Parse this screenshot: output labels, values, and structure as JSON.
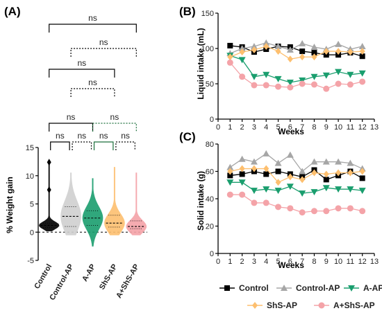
{
  "colors": {
    "Control": "#000000",
    "Control-AP": "#a6a6a6",
    "A-AP": "#1a9e6e",
    "ShS-AP": "#fdbf6f",
    "A+ShS-AP": "#f4a3a8",
    "bracket": "#000000"
  },
  "chart_data": [
    {
      "panel": "(A)",
      "type": "violin",
      "ylabel": "% Weight gain",
      "ylim": [
        -5,
        15
      ],
      "yticks": [
        -5,
        0,
        5,
        10,
        15
      ],
      "categories": [
        "Control",
        "Control-AP",
        "A-AP",
        "ShS-AP",
        "A+ShS-AP"
      ],
      "violins": [
        {
          "name": "Control",
          "color": "#000000",
          "min": 0.2,
          "max": 12.4,
          "median": 1.2,
          "q1": 0.8,
          "q3": 1.6,
          "outliers": [
            12.4,
            7.5
          ]
        },
        {
          "name": "Control-AP",
          "color": "#d0d0d0",
          "min": -0.5,
          "max": 10.5,
          "median": 2.8,
          "q1": 1.0,
          "q3": 4.5,
          "outliers": []
        },
        {
          "name": "A-AP",
          "color": "#1a9e6e",
          "min": -2.5,
          "max": 9.5,
          "median": 2.5,
          "q1": 1.2,
          "q3": 3.8,
          "outliers": []
        },
        {
          "name": "ShS-AP",
          "color": "#fdbf6f",
          "min": -0.5,
          "max": 11.5,
          "median": 1.6,
          "q1": 0.9,
          "q3": 3.0,
          "outliers": []
        },
        {
          "name": "A+ShS-AP",
          "color": "#f4a3a8",
          "min": -0.5,
          "max": 10.5,
          "median": 1.0,
          "q1": 0.6,
          "q3": 2.0,
          "outliers": []
        }
      ],
      "comparisons": [
        {
          "a": 0,
          "b": 4,
          "label": "ns"
        },
        {
          "a": 1,
          "b": 4,
          "label": "ns"
        },
        {
          "a": 0,
          "b": 3,
          "label": "ns"
        },
        {
          "a": 1,
          "b": 3,
          "label": "ns"
        },
        {
          "a": 0,
          "b": 2,
          "label": "ns"
        },
        {
          "a": 2,
          "b": 4,
          "label": "ns"
        },
        {
          "a": 0,
          "b": 1,
          "label": "ns"
        },
        {
          "a": 1,
          "b": 2,
          "label": "ns"
        },
        {
          "a": 2,
          "b": 3,
          "label": "ns"
        },
        {
          "a": 3,
          "b": 4,
          "label": "ns"
        }
      ]
    },
    {
      "panel": "(B)",
      "type": "line",
      "xlabel": "Weeks",
      "ylabel": "Liquid intake  (mL)",
      "xlim": [
        0,
        13
      ],
      "ylim": [
        0,
        150
      ],
      "xticks": [
        0,
        1,
        2,
        3,
        4,
        5,
        6,
        7,
        8,
        9,
        10,
        11,
        12,
        13
      ],
      "yticks": [
        0,
        50,
        100,
        150
      ],
      "x": [
        1,
        2,
        3,
        4,
        5,
        6,
        7,
        8,
        9,
        10,
        11,
        12
      ],
      "series": [
        {
          "name": "Control",
          "color": "#000000",
          "marker": "square",
          "values": [
            104,
            102,
            95,
            99,
            103,
            102,
            96,
            94,
            91,
            91,
            94,
            89
          ]
        },
        {
          "name": "Control-AP",
          "color": "#a6a6a6",
          "marker": "triangle-up",
          "values": [
            93,
            100,
            103,
            108,
            103,
            98,
            107,
            102,
            99,
            106,
            99,
            103
          ]
        },
        {
          "name": "A-AP",
          "color": "#1a9e6e",
          "marker": "triangle-down",
          "values": [
            90,
            84,
            60,
            63,
            57,
            52,
            55,
            60,
            62,
            67,
            63,
            65
          ]
        },
        {
          "name": "ShS-AP",
          "color": "#fdbf6f",
          "marker": "diamond",
          "values": [
            88,
            95,
            98,
            103,
            96,
            85,
            88,
            88,
            96,
            96,
            95,
            96
          ]
        },
        {
          "name": "A+ShS-AP",
          "color": "#f4a3a8",
          "marker": "circle",
          "values": [
            80,
            60,
            48,
            48,
            46,
            45,
            50,
            49,
            43,
            50,
            49,
            53
          ]
        }
      ]
    },
    {
      "panel": "(C)",
      "type": "line",
      "xlabel": "Weeks",
      "ylabel": "Solid intake  (g)",
      "xlim": [
        0,
        13
      ],
      "ylim": [
        0,
        80
      ],
      "xticks": [
        0,
        1,
        2,
        3,
        4,
        5,
        6,
        7,
        8,
        9,
        10,
        11,
        12,
        13
      ],
      "yticks": [
        0,
        20,
        40,
        60,
        80
      ],
      "x": [
        1,
        2,
        3,
        4,
        5,
        6,
        7,
        8,
        9,
        10,
        11,
        12
      ],
      "series": [
        {
          "name": "Control",
          "color": "#000000",
          "marker": "square",
          "values": [
            57,
            58,
            60,
            58,
            60,
            58,
            56,
            61,
            54,
            57,
            60,
            55
          ]
        },
        {
          "name": "Control-AP",
          "color": "#a6a6a6",
          "marker": "triangle-up",
          "values": [
            63,
            69,
            67,
            73,
            66,
            72,
            60,
            67,
            67,
            67,
            66,
            62
          ]
        },
        {
          "name": "A-AP",
          "color": "#1a9e6e",
          "marker": "triangle-down",
          "values": [
            52,
            52,
            46,
            47,
            46,
            49,
            44,
            45,
            48,
            47,
            47,
            46
          ]
        },
        {
          "name": "ShS-AP",
          "color": "#fdbf6f",
          "marker": "diamond",
          "values": [
            60,
            62,
            62,
            62,
            52,
            56,
            54,
            59,
            58,
            59,
            59,
            60
          ]
        },
        {
          "name": "A+ShS-AP",
          "color": "#f4a3a8",
          "marker": "circle",
          "values": [
            43,
            43,
            37,
            37,
            34,
            33,
            30,
            31,
            31,
            33,
            33,
            31
          ]
        }
      ]
    }
  ],
  "legend": [
    "Control",
    "Control-AP",
    "A-AP",
    "ShS-AP",
    "A+ShS-AP"
  ]
}
